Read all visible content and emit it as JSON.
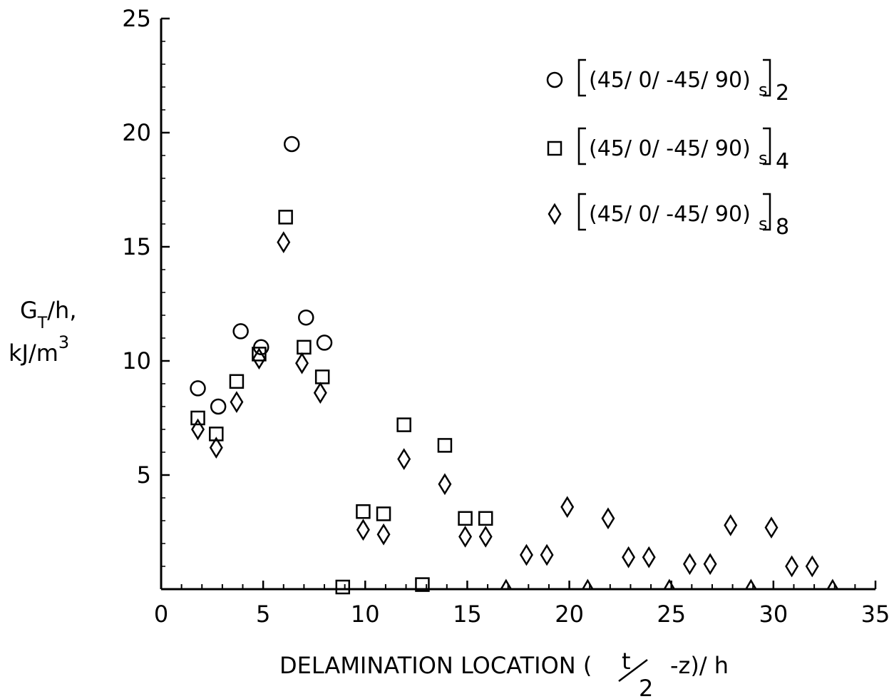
{
  "chart_data": {
    "type": "scatter",
    "xlabel": {
      "main": "DELAMINATION LOCATION (",
      "frac_num": "t",
      "frac_den": "2",
      "rest": "-z)/ h"
    },
    "ylabel": {
      "line1_base": "G",
      "line1_sub": "T",
      "line1_rest": "/h,",
      "line2_base": "kJ/m",
      "line2_sup": "3"
    },
    "xlim": [
      0,
      35
    ],
    "ylim": [
      0,
      25
    ],
    "xticks": [
      0,
      5,
      10,
      15,
      20,
      25,
      30,
      35
    ],
    "yticks": [
      5,
      10,
      15,
      20,
      25
    ],
    "xtick_labels": [
      "0",
      "5",
      "10",
      "15",
      "20",
      "25",
      "30",
      "35"
    ],
    "ytick_labels": [
      "5",
      "10",
      "15",
      "20",
      "25"
    ],
    "grid": false,
    "legend_position": "top-right",
    "series": [
      {
        "name": "[(45/ 0/ -45/ 90)s]2",
        "legend_text": "(45/ 0/ -45/ 90)",
        "legend_sub_s": "s",
        "legend_sub_n": "2",
        "marker": "circle",
        "points": [
          [
            1.8,
            8.8
          ],
          [
            2.8,
            8.0
          ],
          [
            3.9,
            11.3
          ],
          [
            4.9,
            10.6
          ],
          [
            6.4,
            19.5
          ],
          [
            7.1,
            11.9
          ],
          [
            8.0,
            10.8
          ]
        ]
      },
      {
        "name": "[(45/ 0/ -45/ 90)s]4",
        "legend_text": "(45/ 0/ -45/ 90)",
        "legend_sub_s": "s",
        "legend_sub_n": "4",
        "marker": "square",
        "points": [
          [
            1.8,
            7.5
          ],
          [
            2.7,
            6.8
          ],
          [
            3.7,
            9.1
          ],
          [
            4.8,
            10.3
          ],
          [
            6.1,
            16.3
          ],
          [
            7.0,
            10.6
          ],
          [
            7.9,
            9.3
          ],
          [
            8.9,
            0.0
          ],
          [
            9.9,
            3.4
          ],
          [
            10.9,
            3.3
          ],
          [
            11.9,
            7.2
          ],
          [
            12.8,
            0.2
          ],
          [
            13.9,
            6.3
          ],
          [
            14.9,
            3.1
          ],
          [
            15.9,
            3.1
          ]
        ]
      },
      {
        "name": "[(45/ 0/ -45/ 90)s]8",
        "legend_text": "(45/ 0/ -45/ 90)",
        "legend_sub_s": "s",
        "legend_sub_n": "8",
        "marker": "diamond",
        "points": [
          [
            1.8,
            7.0
          ],
          [
            2.7,
            6.2
          ],
          [
            3.7,
            8.2
          ],
          [
            4.8,
            10.1
          ],
          [
            6.0,
            15.2
          ],
          [
            6.9,
            9.9
          ],
          [
            7.8,
            8.6
          ],
          [
            9.9,
            2.6
          ],
          [
            10.9,
            2.4
          ],
          [
            11.9,
            5.7
          ],
          [
            13.9,
            4.6
          ],
          [
            14.9,
            2.3
          ],
          [
            15.9,
            2.3
          ],
          [
            16.9,
            0.0
          ],
          [
            17.9,
            1.5
          ],
          [
            18.9,
            1.5
          ],
          [
            19.9,
            3.6
          ],
          [
            20.9,
            0.0
          ],
          [
            21.9,
            3.1
          ],
          [
            22.9,
            1.4
          ],
          [
            23.9,
            1.4
          ],
          [
            24.9,
            0.0
          ],
          [
            25.9,
            1.1
          ],
          [
            26.9,
            1.1
          ],
          [
            27.9,
            2.8
          ],
          [
            28.9,
            0.0
          ],
          [
            29.9,
            2.7
          ],
          [
            30.9,
            1.0
          ],
          [
            31.9,
            1.0
          ],
          [
            32.9,
            0.0
          ]
        ]
      }
    ]
  }
}
